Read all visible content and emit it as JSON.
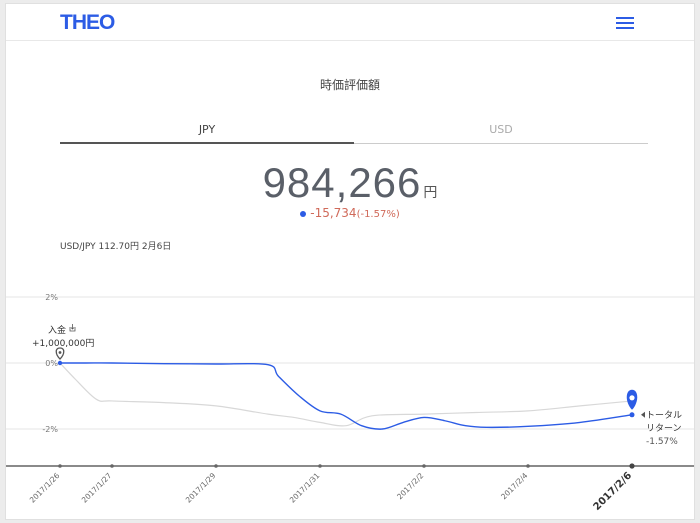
{
  "app": {
    "logo": "THEO",
    "menu_icon": "hamburger-menu-icon"
  },
  "section_title": "時価評価額",
  "tabs": [
    {
      "label": "JPY",
      "active": true
    },
    {
      "label": "USD",
      "active": false
    }
  ],
  "valuation": {
    "amount": "984,266",
    "unit": "円"
  },
  "change": {
    "value": "-15,734",
    "percent": "(-1.57%)",
    "color": "#d06a5a"
  },
  "fx_rate": "USD/JPY 112.70円 2月6日",
  "chart_data": {
    "type": "line",
    "y_ticks": [
      "2%",
      "0%",
      "-2%"
    ],
    "ylim": [
      -3.2,
      2.0
    ],
    "x_labels": [
      "2017/1/26",
      "2017/1/27",
      "2017/1/29",
      "2017/1/31",
      "2017/2/2",
      "2017/2/4",
      "2017/2/6"
    ],
    "x_label_days": [
      0,
      1,
      3,
      5,
      7,
      9,
      11
    ],
    "series": [
      {
        "color": "#2c5ce5",
        "x": [
          0,
          0.5,
          1,
          2,
          3,
          4,
          4.2,
          4.6,
          5,
          5.4,
          5.8,
          6.2,
          6.6,
          7,
          7.4,
          7.8,
          8.2,
          9,
          10,
          11
        ],
        "values": [
          0,
          0,
          0,
          -0.02,
          -0.03,
          -0.05,
          -0.4,
          -1.0,
          -1.45,
          -1.55,
          -1.9,
          -2.0,
          -1.8,
          -1.65,
          -1.75,
          -1.9,
          -1.95,
          -1.92,
          -1.8,
          -1.57
        ]
      },
      {
        "color": "#d8d8d8",
        "x": [
          0,
          0.3,
          0.7,
          1,
          2,
          3,
          4,
          4.5,
          5,
          5.5,
          6,
          7,
          8,
          9,
          10,
          11
        ],
        "values": [
          0,
          -0.5,
          -1.1,
          -1.15,
          -1.2,
          -1.3,
          -1.55,
          -1.65,
          -1.8,
          -1.9,
          -1.6,
          -1.55,
          -1.5,
          -1.45,
          -1.3,
          -1.15
        ]
      }
    ],
    "deposit_marker": {
      "label": "入金",
      "amount": "+1,000,000円",
      "x": 0,
      "y": 0
    },
    "return_marker": {
      "label_line1": "トータル",
      "label_line2": "リターン",
      "percent": "-1.57%",
      "x": 11,
      "y": -1.57
    }
  }
}
